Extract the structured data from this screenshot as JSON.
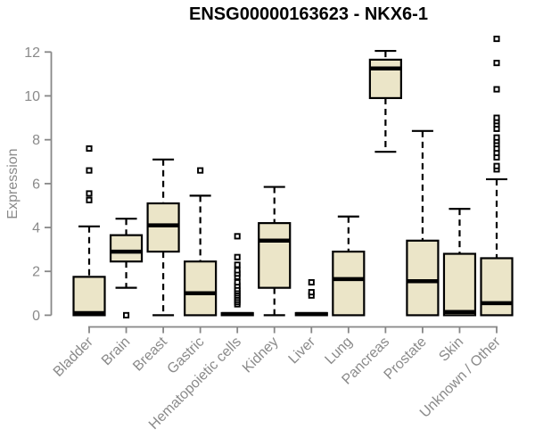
{
  "chart_data": {
    "type": "boxplot",
    "title": "ENSG00000163623 - NKX6-1",
    "ylabel": "Expression",
    "xlabel": "",
    "ylim": [
      0,
      12
    ],
    "yticks": [
      0,
      2,
      4,
      6,
      8,
      10,
      12
    ],
    "grid": false,
    "legend": "none",
    "categories": [
      "Bladder",
      "Brain",
      "Breast",
      "Gastric",
      "Hematopoietic cells",
      "Kidney",
      "Liver",
      "Lung",
      "Pancreas",
      "Prostate",
      "Skin",
      "Unknown / Other"
    ],
    "boxes": [
      {
        "category": "Bladder",
        "whisker_low": 0,
        "q1": 0,
        "median": 0.1,
        "q3": 1.75,
        "whisker_high": 4.05,
        "outliers": [
          5.25,
          5.55,
          6.6,
          7.6
        ]
      },
      {
        "category": "Brain",
        "whisker_low": 1.25,
        "q1": 2.45,
        "median": 2.9,
        "q3": 3.65,
        "whisker_high": 4.4,
        "outliers": [
          0
        ]
      },
      {
        "category": "Breast",
        "whisker_low": 0,
        "q1": 2.9,
        "median": 4.1,
        "q3": 5.1,
        "whisker_high": 7.1,
        "outliers": []
      },
      {
        "category": "Gastric",
        "whisker_low": 0,
        "q1": 0,
        "median": 1.0,
        "q3": 2.45,
        "whisker_high": 5.45,
        "outliers": [
          6.6
        ]
      },
      {
        "category": "Hematopoietic cells",
        "whisker_low": 0,
        "q1": 0,
        "median": 0.05,
        "q3": 0.1,
        "whisker_high": 0.1,
        "outliers": [
          0.5,
          0.6,
          0.7,
          0.8,
          0.9,
          1.0,
          1.1,
          1.2,
          1.35,
          1.5,
          1.75,
          1.9,
          2.05,
          2.3,
          2.65,
          3.6
        ]
      },
      {
        "category": "Kidney",
        "whisker_low": 0,
        "q1": 1.25,
        "median": 3.4,
        "q3": 4.2,
        "whisker_high": 5.85,
        "outliers": []
      },
      {
        "category": "Liver",
        "whisker_low": 0,
        "q1": 0,
        "median": 0.05,
        "q3": 0.1,
        "whisker_high": 0.1,
        "outliers": [
          0.9,
          1.05,
          1.5
        ]
      },
      {
        "category": "Lung",
        "whisker_low": 0,
        "q1": 0,
        "median": 1.65,
        "q3": 2.9,
        "whisker_high": 4.5,
        "outliers": []
      },
      {
        "category": "Pancreas",
        "whisker_low": 7.45,
        "q1": 9.9,
        "median": 11.25,
        "q3": 11.65,
        "whisker_high": 12.05,
        "outliers": []
      },
      {
        "category": "Prostate",
        "whisker_low": 0,
        "q1": 0,
        "median": 1.55,
        "q3": 3.4,
        "whisker_high": 8.4,
        "outliers": []
      },
      {
        "category": "Skin",
        "whisker_low": 0,
        "q1": 0,
        "median": 0.15,
        "q3": 2.8,
        "whisker_high": 4.85,
        "outliers": []
      },
      {
        "category": "Unknown / Other",
        "whisker_low": 0,
        "q1": 0,
        "median": 0.55,
        "q3": 2.6,
        "whisker_high": 6.2,
        "outliers": [
          6.65,
          6.8,
          7.2,
          7.4,
          7.6,
          7.8,
          7.95,
          8.1,
          8.5,
          8.7,
          8.85,
          9.0,
          10.3,
          11.5,
          12.6
        ]
      }
    ],
    "colors": {
      "box_fill": "#ebe5c8",
      "box_stroke": "#000000",
      "median_color": "#000000",
      "whisker_color": "#000000",
      "outlier_fill": "#ffffff",
      "outlier_stroke": "#000000",
      "axis_color": "#878787",
      "tick_label_color": "#8a8a8a",
      "title_color": "#000000",
      "background": "#ffffff"
    }
  }
}
